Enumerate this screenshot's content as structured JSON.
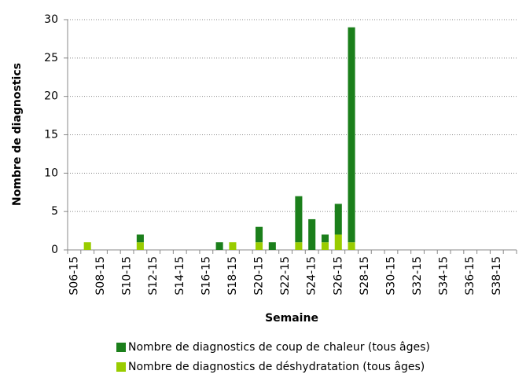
{
  "chart_data": {
    "type": "stacked-bar",
    "x_label": "Semaine",
    "y_label": "Nombre de diagnostics",
    "categories": [
      "S06-15",
      null,
      "S08-15",
      null,
      "S10-15",
      null,
      "S12-15",
      null,
      "S14-15",
      null,
      "S16-15",
      null,
      "S18-15",
      null,
      "S20-15",
      null,
      "S22-15",
      null,
      "S24-15",
      null,
      "S26-15",
      null,
      "S28-15",
      null,
      "S30-15",
      null,
      "S32-15",
      null,
      "S34-15",
      null,
      "S36-15",
      null,
      "S38-15",
      null
    ],
    "series": [
      {
        "name": "Nombre de diagnostics de coup de chaleur (tous âges)",
        "color": "#1b7f1b",
        "values": [
          0,
          0,
          0,
          0,
          0,
          1,
          0,
          0,
          0,
          0,
          0,
          1,
          0,
          0,
          2,
          1,
          0,
          6,
          4,
          1,
          4,
          28,
          0,
          0,
          0,
          0,
          0,
          0,
          0,
          0,
          0,
          0,
          0,
          0
        ]
      },
      {
        "name": "Nombre de diagnostics de déshydratation (tous âges)",
        "color": "#99cc00",
        "values": [
          0,
          1,
          0,
          0,
          0,
          1,
          0,
          0,
          0,
          0,
          0,
          0,
          1,
          0,
          1,
          0,
          0,
          1,
          0,
          1,
          2,
          1,
          0,
          0,
          0,
          0,
          0,
          0,
          0,
          0,
          0,
          0,
          0,
          0
        ]
      }
    ],
    "ylim": [
      0,
      30
    ],
    "yticks": [
      0,
      5,
      10,
      15,
      20,
      25,
      30
    ],
    "grid": true
  }
}
